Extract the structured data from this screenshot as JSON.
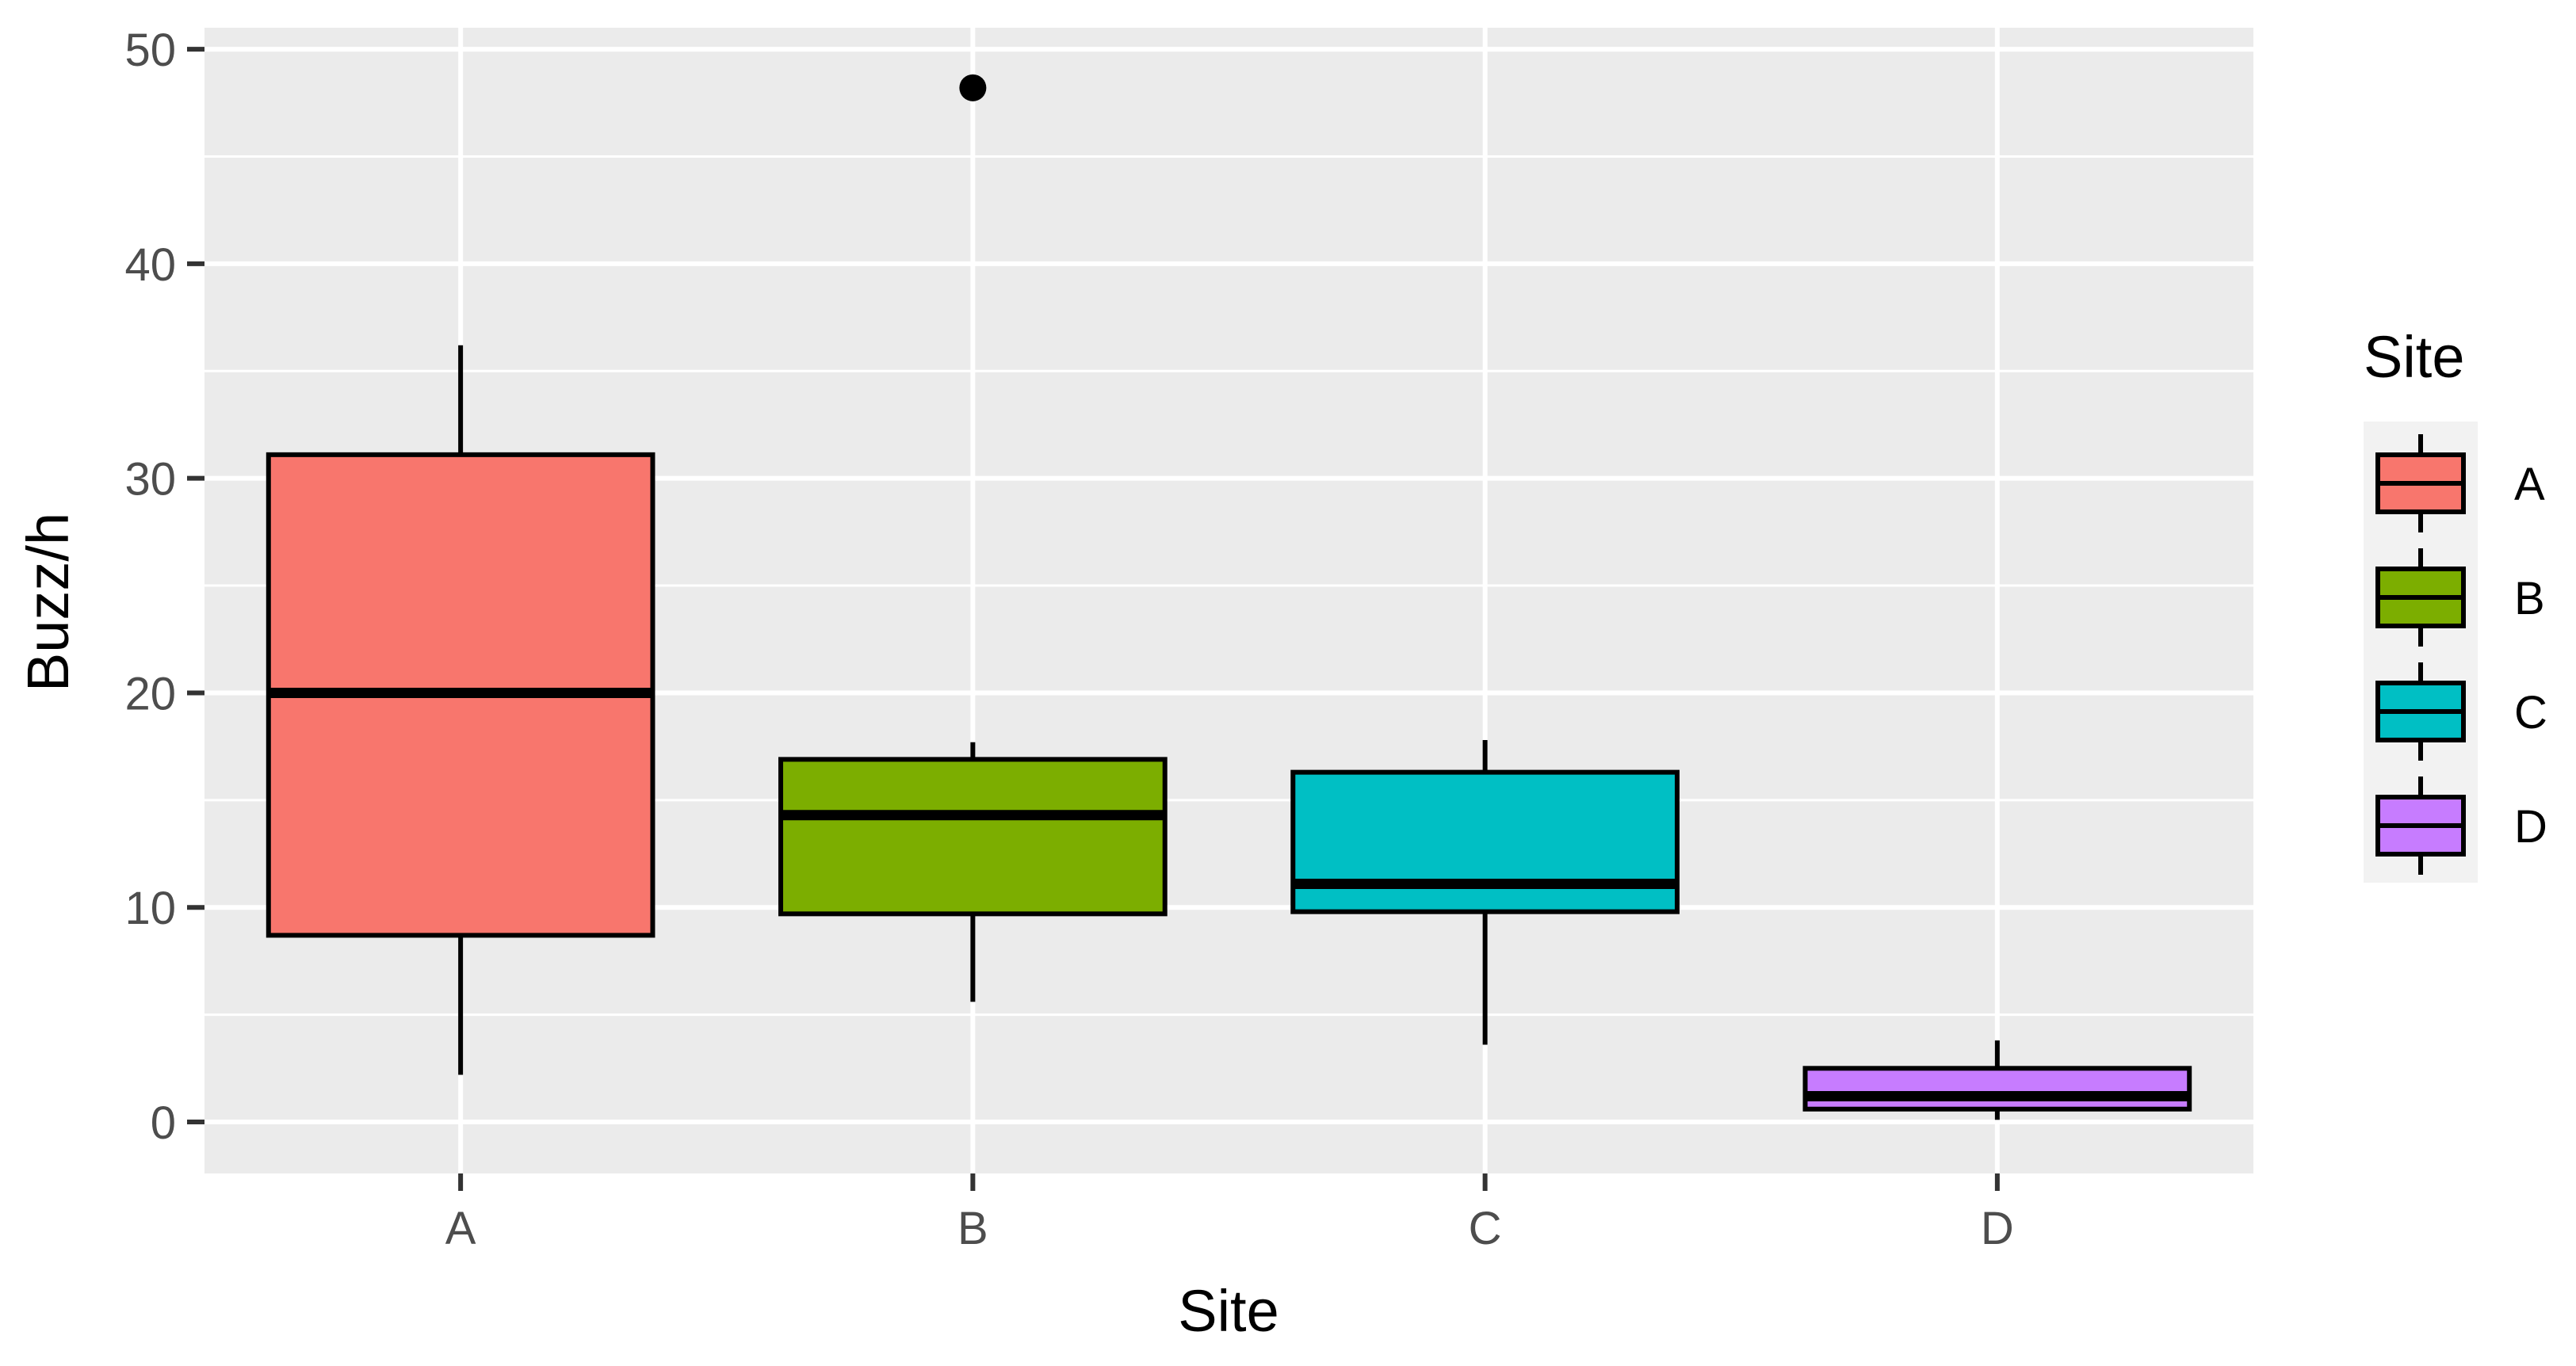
{
  "chart_data": {
    "type": "boxplot",
    "xlabel": "Site",
    "ylabel": "Buzz/h",
    "categories": [
      "A",
      "B",
      "C",
      "D"
    ],
    "ylim": [
      -2.4,
      51
    ],
    "y_ticks": [
      0,
      10,
      20,
      30,
      40,
      50
    ],
    "y_minor_ticks": [
      5,
      15,
      25,
      35,
      45
    ],
    "grid": true,
    "legend": {
      "title": "Site",
      "placement": "right",
      "entries": [
        "A",
        "B",
        "C",
        "D"
      ]
    },
    "colors": {
      "A": "#F8766D",
      "B": "#7CAE00",
      "C": "#00BFC4",
      "D": "#C77CFF",
      "panel_background": "#EBEBEB",
      "grid": "#FFFFFF",
      "outline": "#000000"
    },
    "boxes": [
      {
        "category": "A",
        "whisker_low": 2.2,
        "q1": 8.7,
        "median": 20.0,
        "q3": 31.1,
        "whisker_high": 36.2,
        "outliers": []
      },
      {
        "category": "B",
        "whisker_low": 5.6,
        "q1": 9.7,
        "median": 14.3,
        "q3": 16.9,
        "whisker_high": 17.7,
        "outliers": [
          48.2
        ]
      },
      {
        "category": "C",
        "whisker_low": 3.6,
        "q1": 9.8,
        "median": 11.1,
        "q3": 16.3,
        "whisker_high": 17.8,
        "outliers": []
      },
      {
        "category": "D",
        "whisker_low": 0.1,
        "q1": 0.6,
        "median": 1.2,
        "q3": 2.5,
        "whisker_high": 3.8,
        "outliers": []
      }
    ]
  }
}
